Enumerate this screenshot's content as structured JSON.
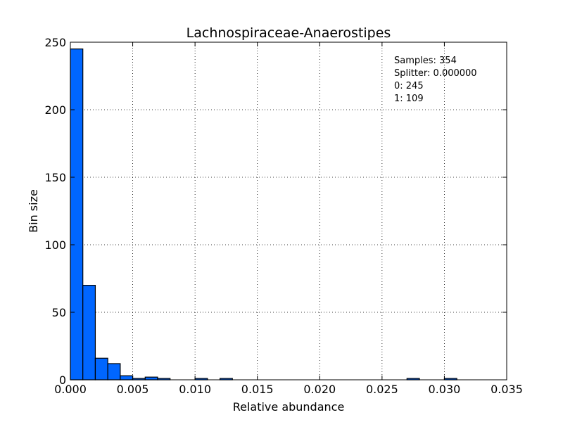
{
  "chart_data": {
    "type": "bar",
    "title": "Lachnospiraceae-Anaerostipes",
    "xlabel": "Relative abundance",
    "ylabel": "Bin size",
    "xlim": [
      0.0,
      0.035
    ],
    "ylim": [
      0,
      250
    ],
    "xticks": [
      "0.000",
      "0.005",
      "0.010",
      "0.015",
      "0.020",
      "0.025",
      "0.030",
      "0.035"
    ],
    "yticks": [
      "0",
      "50",
      "100",
      "150",
      "200",
      "250"
    ],
    "grid": true,
    "bar_color": "#0066ff",
    "bin_width": 0.001,
    "bins": [
      {
        "x": 0.0,
        "value": 245
      },
      {
        "x": 0.001,
        "value": 70
      },
      {
        "x": 0.002,
        "value": 16
      },
      {
        "x": 0.003,
        "value": 12
      },
      {
        "x": 0.004,
        "value": 3
      },
      {
        "x": 0.005,
        "value": 1
      },
      {
        "x": 0.006,
        "value": 2
      },
      {
        "x": 0.007,
        "value": 1
      },
      {
        "x": 0.01,
        "value": 1
      },
      {
        "x": 0.012,
        "value": 1
      },
      {
        "x": 0.027,
        "value": 1
      },
      {
        "x": 0.03,
        "value": 1
      }
    ],
    "annotation": [
      "Samples: 354",
      "Splitter: 0.000000",
      "0: 245",
      "1: 109"
    ]
  }
}
